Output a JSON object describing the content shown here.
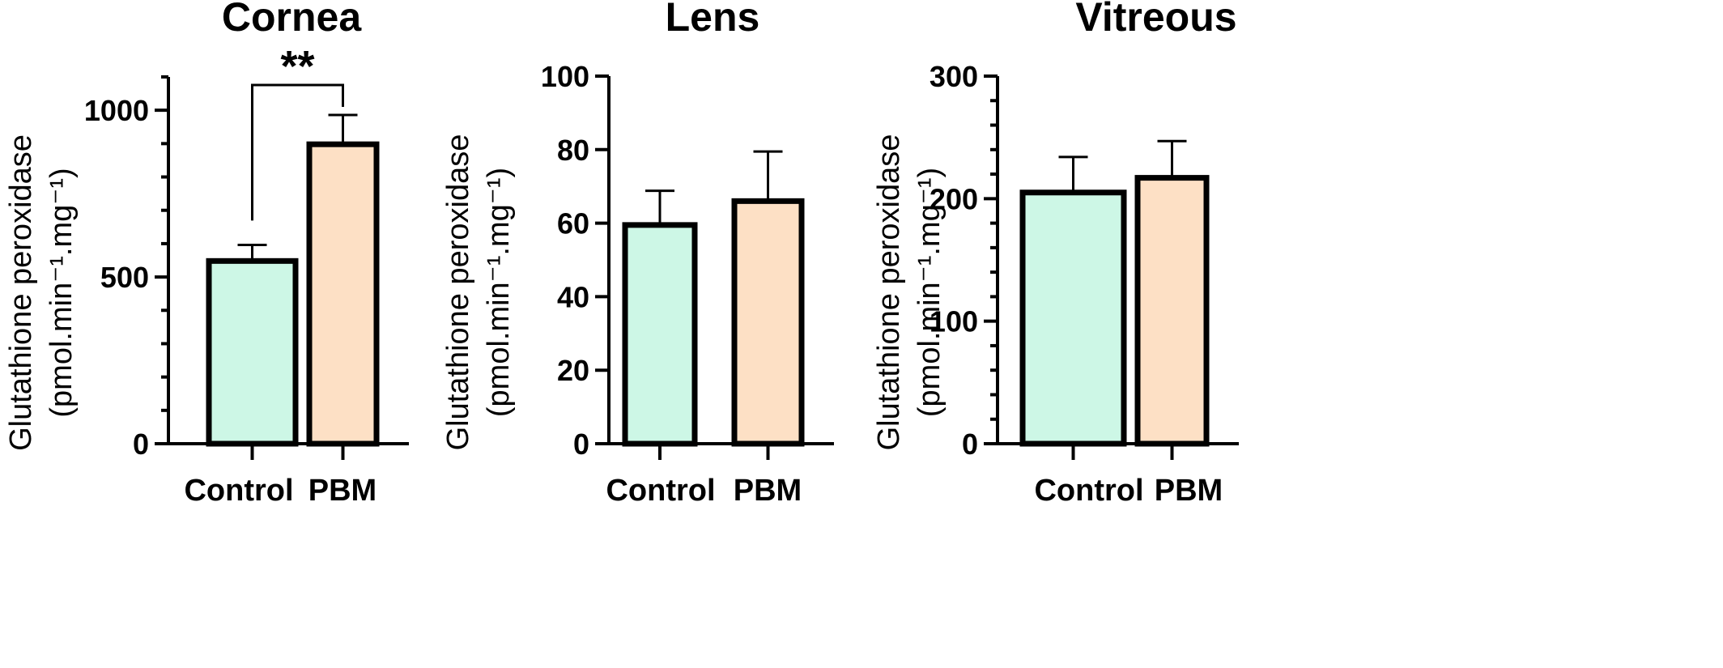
{
  "chart_data": [
    {
      "type": "bar",
      "title": "Cornea",
      "ylabel_line1": "Glutathione peroxidase",
      "ylabel_line2": "(pmol.min⁻¹.mg⁻¹)",
      "categories": [
        "Control",
        "PBM"
      ],
      "values": [
        548,
        898
      ],
      "errors": [
        48,
        88
      ],
      "colors": [
        "#cdf7e6",
        "#fde0c5"
      ],
      "ylim": [
        0,
        1100
      ],
      "major_ticks": [
        0,
        500,
        1000
      ],
      "minor_step": 100,
      "tick_labels": [
        "0",
        "500",
        "1000"
      ],
      "significance": {
        "between": [
          0,
          1
        ],
        "label": "**"
      }
    },
    {
      "type": "bar",
      "title": "Lens",
      "ylabel_line1": "Glutathione peroxidase",
      "ylabel_line2": "(pmol.min⁻¹.mg⁻¹)",
      "categories": [
        "Control",
        "PBM"
      ],
      "values": [
        59.5,
        66
      ],
      "errors": [
        9.3,
        13.5
      ],
      "colors": [
        "#cdf7e6",
        "#fde0c5"
      ],
      "ylim": [
        0,
        100
      ],
      "major_ticks": [
        0,
        20,
        40,
        60,
        80,
        100
      ],
      "minor_step": null,
      "tick_labels": [
        "0",
        "20",
        "40",
        "60",
        "80",
        "100"
      ]
    },
    {
      "type": "bar",
      "title": "Vitreous",
      "ylabel_line1": "Glutathione peroxidase",
      "ylabel_line2": "(pmol.min⁻¹.mg⁻¹)",
      "categories": [
        "Control",
        "PBM"
      ],
      "values": [
        205,
        217
      ],
      "errors": [
        29,
        30
      ],
      "colors": [
        "#cdf7e6",
        "#fde0c5"
      ],
      "ylim": [
        0,
        300
      ],
      "major_ticks": [
        0,
        100,
        200,
        300
      ],
      "minor_step": 20,
      "tick_labels": [
        "0",
        "100",
        "200",
        "300"
      ]
    }
  ]
}
